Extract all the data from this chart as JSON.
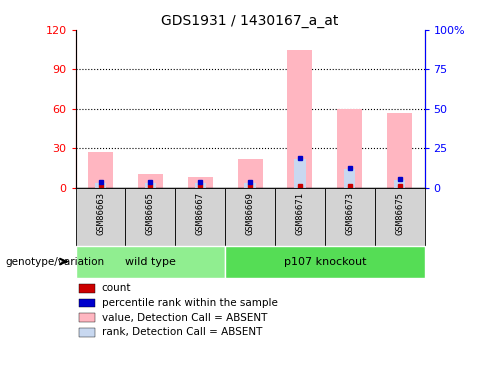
{
  "title": "GDS1931 / 1430167_a_at",
  "samples": [
    "GSM86663",
    "GSM86665",
    "GSM86667",
    "GSM86669",
    "GSM86671",
    "GSM86673",
    "GSM86675"
  ],
  "value_bars": [
    27,
    10,
    8,
    22,
    105,
    60,
    57
  ],
  "rank_bars": [
    3.6,
    3.6,
    3.6,
    3.6,
    21.6,
    14.4,
    6.0
  ],
  "ylim_left": [
    0,
    120
  ],
  "ylim_right": [
    0,
    100
  ],
  "yticks_left": [
    0,
    30,
    60,
    90,
    120
  ],
  "yticks_right": [
    0,
    25,
    50,
    75,
    100
  ],
  "yticklabels_left": [
    "0",
    "30",
    "60",
    "90",
    "120"
  ],
  "yticklabels_right": [
    "0",
    "25",
    "50",
    "75",
    "100%"
  ],
  "color_value_bar": "#FFB6C1",
  "color_rank_bar": "#C8D8F0",
  "color_count": "#CC0000",
  "color_percentile": "#0000CC",
  "label_area_color": "#D3D3D3",
  "group_defs": [
    {
      "label": "wild type",
      "start": 0,
      "end": 2,
      "color": "#90EE90"
    },
    {
      "label": "p107 knockout",
      "start": 3,
      "end": 6,
      "color": "#55DD55"
    }
  ],
  "legend_labels": [
    "count",
    "percentile rank within the sample",
    "value, Detection Call = ABSENT",
    "rank, Detection Call = ABSENT"
  ],
  "legend_colors": [
    "#CC0000",
    "#0000CC",
    "#FFB6C1",
    "#C8D8F0"
  ],
  "group_annotation": "genotype/variation"
}
